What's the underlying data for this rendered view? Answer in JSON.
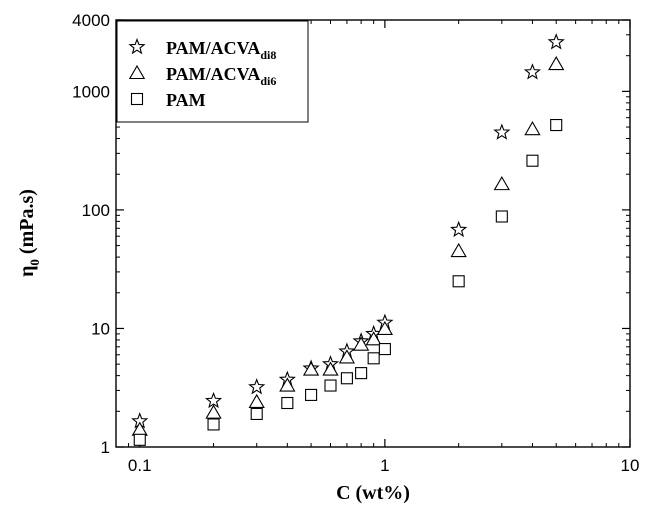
{
  "chart_data": {
    "type": "scatter",
    "xscale": "log",
    "yscale": "log",
    "xlim": [
      0.08,
      10
    ],
    "ylim": [
      1,
      4000
    ],
    "x_ticks": [
      {
        "value": 0.1,
        "label": "0.1"
      },
      {
        "value": 1,
        "label": "1"
      },
      {
        "value": 10,
        "label": "10"
      }
    ],
    "y_ticks": [
      {
        "value": 1,
        "label": "1"
      },
      {
        "value": 10,
        "label": "10"
      },
      {
        "value": 100,
        "label": "100"
      },
      {
        "value": 1000,
        "label": "1000"
      },
      {
        "value": 4000,
        "label": "4000"
      }
    ],
    "xlabel": "C (wt%)",
    "ylabel": {
      "main": "η",
      "sub": "0",
      "rest": " (mPa.s)"
    },
    "legend_position": "top-left",
    "series": [
      {
        "name": {
          "main": "PAM/ACVA",
          "sub": "di8"
        },
        "marker": "star",
        "x": [
          0.1,
          0.2,
          0.3,
          0.4,
          0.5,
          0.6,
          0.7,
          0.8,
          0.9,
          1.0,
          2,
          3,
          4,
          5
        ],
        "y": [
          1.65,
          2.45,
          3.2,
          3.7,
          4.6,
          5.0,
          6.4,
          7.8,
          9.0,
          11.2,
          68,
          450,
          1450,
          2600
        ]
      },
      {
        "name": {
          "main": "PAM/ACVA",
          "sub": "di6"
        },
        "marker": "triangle",
        "x": [
          0.1,
          0.2,
          0.3,
          0.4,
          0.5,
          0.6,
          0.7,
          0.8,
          0.9,
          1.0,
          2,
          3,
          4,
          5
        ],
        "y": [
          1.4,
          1.95,
          2.4,
          3.3,
          4.5,
          4.5,
          5.7,
          7.3,
          8.1,
          9.9,
          45,
          165,
          480,
          1700
        ]
      },
      {
        "name": {
          "main": "PAM",
          "sub": ""
        },
        "marker": "square",
        "x": [
          0.1,
          0.2,
          0.3,
          0.4,
          0.5,
          0.6,
          0.7,
          0.8,
          0.9,
          1.0,
          2,
          3,
          4,
          5
        ],
        "y": [
          1.15,
          1.55,
          1.9,
          2.35,
          2.75,
          3.3,
          3.8,
          4.2,
          5.6,
          6.7,
          25,
          88,
          260,
          520
        ]
      }
    ],
    "colors": {
      "marker_stroke": "#000000",
      "marker_fill": "#ffffff",
      "axis": "#000000",
      "background": "#ffffff"
    }
  }
}
